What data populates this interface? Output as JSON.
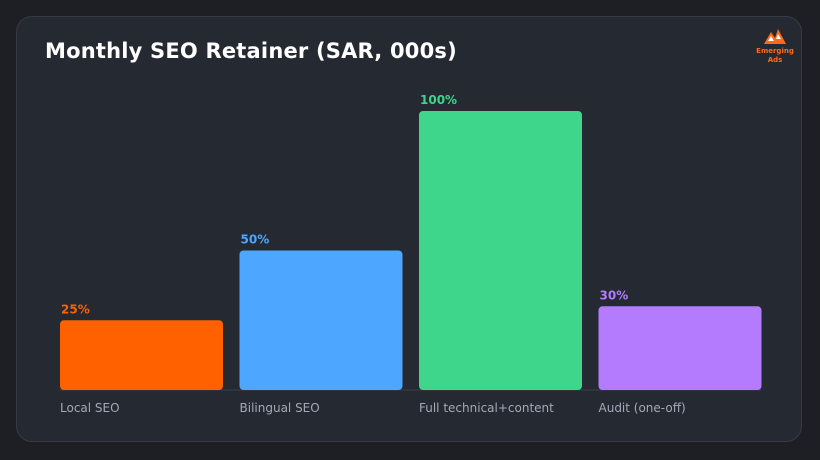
{
  "brand": {
    "logo_line1": "Emerging",
    "logo_line2": "Ads",
    "logo_icon": "mountain-logo-icon",
    "color": "#ff6a1a"
  },
  "chart_data": {
    "type": "bar",
    "title": "Monthly SEO Retainer (SAR, 000s)",
    "xlabel": "",
    "ylabel": "",
    "ylim": [
      0,
      100
    ],
    "grid": false,
    "categories": [
      "Local SEO",
      "Bilingual SEO",
      "Full technical+content",
      "Audit (one-off)"
    ],
    "values": [
      25,
      50,
      100,
      30
    ],
    "labels": [
      "25%",
      "50%",
      "100%",
      "30%"
    ],
    "colors": [
      "#ff6100",
      "#4da6ff",
      "#3ed68a",
      "#b57bff"
    ]
  }
}
